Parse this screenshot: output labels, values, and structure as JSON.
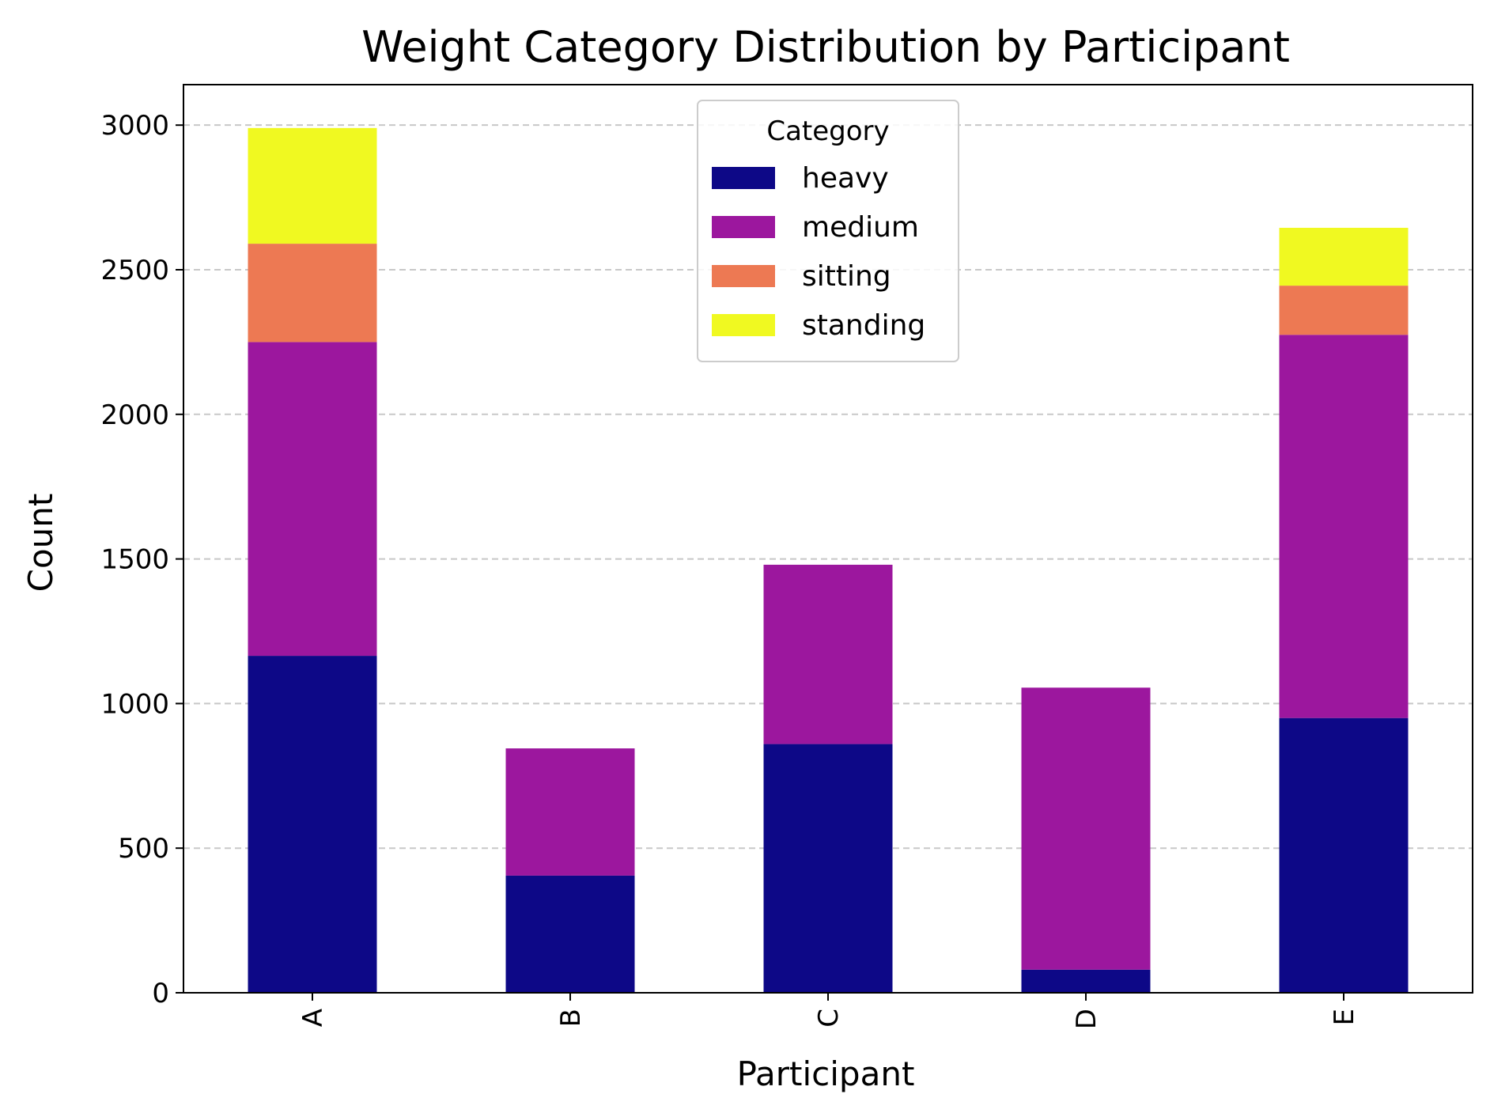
{
  "chart_data": {
    "type": "bar",
    "stacked": true,
    "title": "Weight Category Distribution by Participant",
    "xlabel": "Participant",
    "ylabel": "Count",
    "categories": [
      "A",
      "B",
      "C",
      "D",
      "E"
    ],
    "series": [
      {
        "name": "heavy",
        "color": "#0d0887",
        "values": [
          1165,
          405,
          860,
          80,
          950
        ]
      },
      {
        "name": "medium",
        "color": "#9c179e",
        "values": [
          1085,
          440,
          620,
          975,
          1325
        ]
      },
      {
        "name": "sitting",
        "color": "#ed7953",
        "values": [
          340,
          0,
          0,
          0,
          170
        ]
      },
      {
        "name": "standing",
        "color": "#f0f921",
        "values": [
          400,
          0,
          0,
          0,
          200
        ]
      }
    ],
    "ylim": [
      0,
      3140
    ],
    "yticks": [
      0,
      500,
      1000,
      1500,
      2000,
      2500,
      3000
    ],
    "grid": {
      "y": true,
      "x": false,
      "style": "dashed"
    },
    "legend": {
      "title": "Category",
      "placement": "top-center"
    }
  }
}
